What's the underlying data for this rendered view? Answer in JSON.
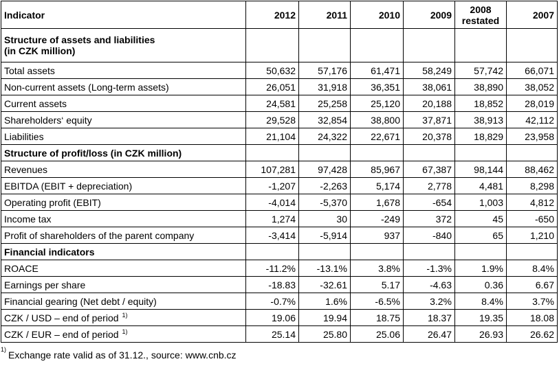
{
  "header": {
    "indicator": "Indicator",
    "years": [
      "2012",
      "2011",
      "2010",
      "2009",
      "2008\nrestated",
      "2007"
    ],
    "year_2008_line1": "2008",
    "year_2008_line2": "restated"
  },
  "sections": [
    {
      "title": "Structure of assets and liabilities\n(in CZK million)",
      "title_line1": "Structure of assets and liabilities",
      "title_line2": "(in CZK million)",
      "rows": [
        {
          "label": "Total assets",
          "values": [
            "50,632",
            "57,176",
            "61,471",
            "58,249",
            "57,742",
            "66,071"
          ]
        },
        {
          "label": "Non-current assets (Long-term assets)",
          "values": [
            "26,051",
            "31,918",
            "36,351",
            "38,061",
            "38,890",
            "38,052"
          ]
        },
        {
          "label": "Current assets",
          "values": [
            "24,581",
            "25,258",
            "25,120",
            "20,188",
            "18,852",
            "28,019"
          ]
        },
        {
          "label": "Shareholders‘ equity",
          "values": [
            "29,528",
            "32,854",
            "38,800",
            "37,871",
            "38,913",
            "42,112"
          ]
        },
        {
          "label": "Liabilities",
          "values": [
            "21,104",
            "24,322",
            "22,671",
            "20,378",
            "18,829",
            "23,958"
          ]
        }
      ]
    },
    {
      "title": "Structure of profit/loss (in CZK million)",
      "rows": [
        {
          "label": "Revenues",
          "values": [
            "107,281",
            "97,428",
            "85,967",
            "67,387",
            "98,144",
            "88,462"
          ]
        },
        {
          "label": "EBITDA (EBIT + depreciation)",
          "values": [
            "-1,207",
            "-2,263",
            "5,174",
            "2,778",
            "4,481",
            "8,298"
          ]
        },
        {
          "label": "Operating profit (EBIT)",
          "values": [
            "-4,014",
            "-5,370",
            "1,678",
            "-654",
            "1,003",
            "4,812"
          ]
        },
        {
          "label": "Income tax",
          "values": [
            "1,274",
            "30",
            "-249",
            "372",
            "45",
            "-650"
          ]
        },
        {
          "label": "Profit of shareholders of the parent company",
          "values": [
            "-3,414",
            "-5,914",
            "937",
            "-840",
            "65",
            "1,210"
          ]
        }
      ]
    },
    {
      "title": "Financial indicators",
      "rows": [
        {
          "label": "ROACE",
          "values": [
            "-11.2%",
            "-13.1%",
            "3.8%",
            "-1.3%",
            "1.9%",
            "8.4%"
          ]
        },
        {
          "label": "Earnings per share",
          "values": [
            "-18.83",
            "-32.61",
            "5.17",
            "-4.63",
            "0.36",
            "6.67"
          ]
        },
        {
          "label": "Financial gearing (Net debt / equity)",
          "values": [
            "-0.7%",
            "1.6%",
            "-6.5%",
            "3.2%",
            "8.4%",
            "3.7%"
          ]
        },
        {
          "label": "CZK / USD – end of period",
          "footnote_mark": "1)",
          "values": [
            "19.06",
            "19.94",
            "18.75",
            "18.37",
            "19.35",
            "18.08"
          ]
        },
        {
          "label": "CZK / EUR – end of period",
          "footnote_mark": "1)",
          "values": [
            "25.14",
            "25.80",
            "25.06",
            "26.47",
            "26.93",
            "26.62"
          ]
        }
      ]
    }
  ],
  "footnote": {
    "mark": "1)",
    "text": "Exchange rate valid as of 31.12., source: www.cnb.cz"
  }
}
